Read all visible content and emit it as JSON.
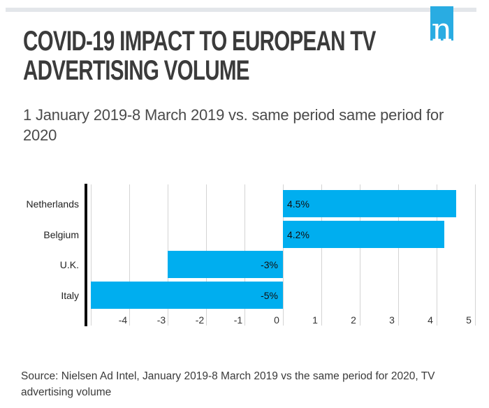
{
  "brand": {
    "logo_letter": "n",
    "logo_color": "#29ACE2"
  },
  "header": {
    "title_lines": [
      "COVID-19 IMPACT TO EUROPEAN TV",
      "ADVERTISING VOLUME"
    ],
    "subtitle_lines": [
      "1 January 2019-8 March 2019 vs. same period same period for",
      "2020"
    ]
  },
  "chart_data": {
    "type": "bar",
    "orientation": "horizontal",
    "title": "COVID-19 IMPACT TO EUROPEAN TV ADVERTISING VOLUME",
    "categories": [
      "Netherlands",
      "Belgium",
      "U.K.",
      "Italy"
    ],
    "values": [
      4.5,
      4.2,
      -3,
      -5
    ],
    "value_labels": [
      "4.5%",
      "4.2%",
      "-3%",
      "-5%"
    ],
    "x_ticks": [
      "-4",
      "-3",
      "-2",
      "-1",
      "0",
      "1",
      "2",
      "3",
      "4",
      "5"
    ],
    "x_tick_values": [
      -4,
      -3,
      -2,
      -1,
      0,
      1,
      2,
      3,
      4,
      5
    ],
    "xlim": [
      -5,
      5.25
    ],
    "grid": true,
    "grid_color": "#D4D4D4",
    "bar_color": "#00AEEF",
    "legend": "none"
  },
  "footer": {
    "source_lines": [
      "Source: Nielsen Ad Intel, January 2019-8 March 2019 vs the same period for 2020, TV",
      "advertising volume"
    ]
  }
}
